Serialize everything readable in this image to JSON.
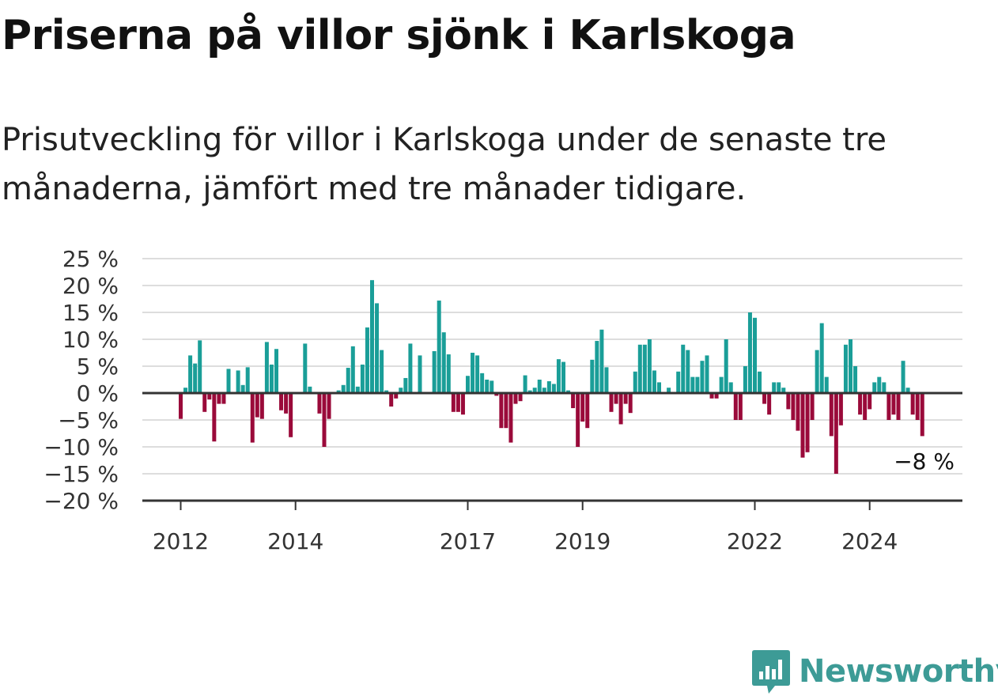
{
  "header": {
    "title": "Priserna på villor sjönk i Karlskoga",
    "subtitle": "Prisutveckling för villor i Karlskoga under de senaste tre månaderna, jämfört med tre månader tidigare."
  },
  "brand": {
    "name": "Newsworthy",
    "color": "#3d9b96",
    "icon": "newsworthy-logo-icon"
  },
  "colors": {
    "positive": "#1a9e98",
    "negative": "#9a0a3a",
    "grid": "#dddddd",
    "axis": "#333333"
  },
  "chart_data": {
    "type": "bar",
    "title": "Priserna på villor sjönk i Karlskoga",
    "xlabel": "",
    "ylabel": "",
    "ylim": [
      -20,
      25
    ],
    "grid": true,
    "legend": "none",
    "y_ticks": [
      25,
      20,
      15,
      10,
      5,
      0,
      -5,
      -10,
      -15,
      -20
    ],
    "y_tick_labels": [
      "25 %",
      "20 %",
      "15 %",
      "10 %",
      "5 %",
      "0 %",
      "−5 %",
      "−10 %",
      "−15 %",
      "−20 %"
    ],
    "x_tick_labels": [
      "2012",
      "2014",
      "2017",
      "2019",
      "2022",
      "2024"
    ],
    "x_tick_dates": [
      "2012-01",
      "2014-01",
      "2017-01",
      "2019-01",
      "2022-01",
      "2024-01"
    ],
    "start_month": "2012-01",
    "end_month": "2024-12",
    "annotation": "−8 %",
    "values": [
      -4.8,
      1.0,
      7.0,
      5.5,
      9.8,
      -3.5,
      -1.2,
      -9.0,
      -2.0,
      -2.0,
      4.5,
      0,
      4.2,
      1.5,
      4.8,
      -9.2,
      -4.5,
      -4.8,
      9.5,
      5.3,
      8.2,
      -3.2,
      -3.8,
      -8.2,
      0,
      0,
      9.2,
      1.2,
      0,
      -3.8,
      -10.0,
      -4.8,
      0,
      0.5,
      1.5,
      4.7,
      8.7,
      1.2,
      5.3,
      12.2,
      21.0,
      16.7,
      8.0,
      0.5,
      -2.5,
      -1.0,
      1.0,
      2.8,
      9.2,
      0,
      7.0,
      0,
      0,
      7.8,
      17.2,
      11.3,
      7.2,
      -3.5,
      -3.5,
      -4.0,
      3.2,
      7.5,
      7.0,
      3.7,
      2.5,
      2.3,
      -0.5,
      -6.5,
      -6.5,
      -9.2,
      -2.0,
      -1.5,
      3.3,
      0.5,
      1.0,
      2.5,
      1.0,
      2.2,
      1.7,
      6.3,
      5.8,
      0.5,
      -2.8,
      -10.0,
      -5.3,
      -6.5,
      6.2,
      9.7,
      11.8,
      4.8,
      -3.5,
      -2.0,
      -5.8,
      -2.0,
      -3.7,
      4.0,
      9.0,
      9.0,
      10.0,
      4.2,
      2.0,
      0,
      1.0,
      0,
      4.0,
      9.0,
      8.0,
      3.0,
      3.0,
      6.0,
      7.0,
      -1.0,
      -1.0,
      3.0,
      10.0,
      2.0,
      -5.0,
      -5.0,
      5.0,
      15.0,
      14.0,
      4.0,
      -2.0,
      -4.0,
      2.0,
      2.0,
      1.0,
      -3.0,
      -5.0,
      -7.0,
      -12.0,
      -11.0,
      -5.0,
      8.0,
      13.0,
      3.0,
      -8.0,
      -15.0,
      -6.0,
      9.0,
      10.0,
      5.0,
      -4.0,
      -5.0,
      -3.0,
      2.0,
      3.0,
      2.0,
      -5.0,
      -4.0,
      -5.0,
      6.0,
      1.0,
      -4.0,
      -5.0,
      -8.0
    ]
  }
}
